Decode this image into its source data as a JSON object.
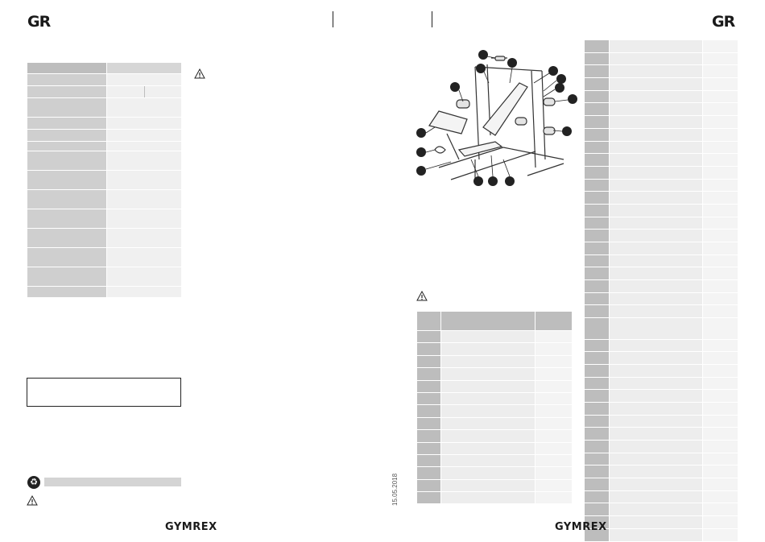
{
  "header": {
    "left_logo": "GR",
    "right_logo": "GR"
  },
  "footer": {
    "left_brand": "GYMREX",
    "right_brand": "GYMREX",
    "date": "15.05.2018"
  },
  "spec_table": {
    "rows": 15
  },
  "diagram": {
    "callouts": 14
  },
  "parts_table_left": {
    "rows": 15
  },
  "parts_table_right": {
    "rows": 39
  },
  "icons": [
    "warning-icon",
    "recycle-icon"
  ]
}
